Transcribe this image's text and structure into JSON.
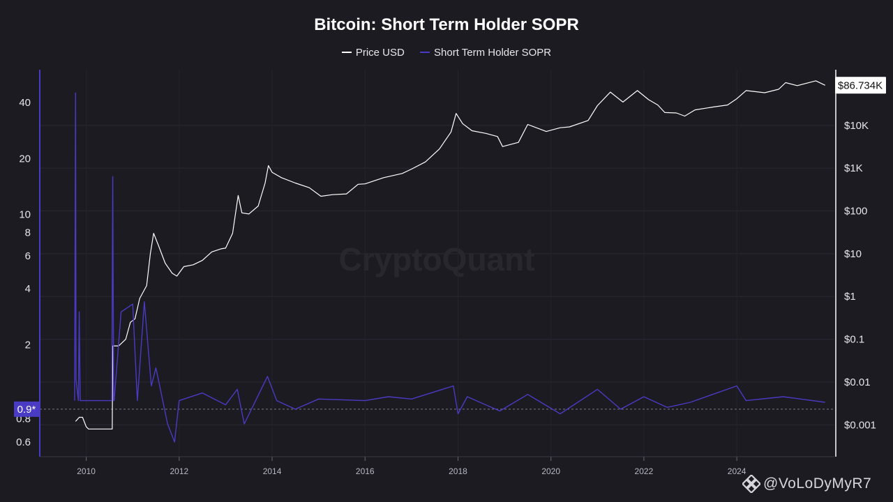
{
  "header": {
    "title": "Bitcoin: Short Term Holder SOPR"
  },
  "legend": [
    {
      "label": "Price USD",
      "color": "#ffffff"
    },
    {
      "label": "Short Term Holder SOPR",
      "color": "#4a3bc4"
    }
  ],
  "watermark": {
    "brand": "CryptoQuant",
    "handle": "@VoLoDyMyR7",
    "logo_icon": "binance-diamond-icon"
  },
  "chart_data": {
    "type": "line",
    "title": "Bitcoin: Short Term Holder SOPR",
    "xlabel": "",
    "ylabel": "",
    "x_ticks": [
      "2010",
      "2012",
      "2014",
      "2016",
      "2018",
      "2020",
      "2022",
      "2024"
    ],
    "xlim": [
      2009.0,
      2026.1
    ],
    "grid": true,
    "legend_position": "top-center",
    "left_axis": {
      "scale": "log",
      "ticks": [
        0.6,
        0.8,
        2,
        4,
        6,
        8,
        10,
        20,
        40
      ],
      "tick_labels": [
        "0.6",
        "0.8",
        "2",
        "4",
        "6",
        "8",
        "10",
        "20",
        "40"
      ],
      "ylim": [
        0.5,
        60
      ],
      "highlight": {
        "label": "0.9*",
        "value": 0.9,
        "color": "#4a3bc4"
      }
    },
    "right_axis": {
      "scale": "log",
      "ticks": [
        0.001,
        0.01,
        0.1,
        1,
        10,
        100,
        1000,
        10000
      ],
      "tick_labels": [
        "$0.001",
        "$0.01",
        "$0.1",
        "$1",
        "$10",
        "$100",
        "$1K",
        "$10K"
      ],
      "ylim": [
        0.00018,
        200000
      ],
      "current_value_label": "$86.734K"
    },
    "series": [
      {
        "name": "Price USD",
        "axis": "right",
        "color": "#ffffff",
        "x": [
          2009.77,
          2009.85,
          2009.92,
          2010.0,
          2010.05,
          2010.1,
          2010.56,
          2010.57,
          2010.7,
          2010.85,
          2010.95,
          2011.05,
          2011.15,
          2011.3,
          2011.38,
          2011.45,
          2011.55,
          2011.7,
          2011.85,
          2011.95,
          2012.1,
          2012.3,
          2012.5,
          2012.7,
          2012.9,
          2013.0,
          2013.15,
          2013.27,
          2013.35,
          2013.5,
          2013.7,
          2013.85,
          2013.92,
          2014.0,
          2014.2,
          2014.5,
          2014.8,
          2015.05,
          2015.3,
          2015.6,
          2015.85,
          2016.0,
          2016.4,
          2016.8,
          2017.0,
          2017.3,
          2017.6,
          2017.85,
          2017.96,
          2018.1,
          2018.3,
          2018.6,
          2018.85,
          2018.96,
          2019.3,
          2019.5,
          2019.9,
          2020.2,
          2020.4,
          2020.8,
          2021.0,
          2021.28,
          2021.55,
          2021.86,
          2022.1,
          2022.3,
          2022.45,
          2022.7,
          2022.88,
          2023.1,
          2023.5,
          2023.8,
          2024.0,
          2024.2,
          2024.6,
          2024.9,
          2025.05,
          2025.3,
          2025.7,
          2025.9
        ],
        "values": [
          0.0012,
          0.0015,
          0.0015,
          0.0009,
          0.0008,
          0.0008,
          0.0008,
          0.07,
          0.07,
          0.1,
          0.25,
          0.3,
          0.9,
          1.8,
          10,
          30,
          16,
          6,
          3.5,
          3,
          5,
          5.5,
          7,
          11,
          13,
          13.5,
          30,
          230,
          90,
          85,
          130,
          450,
          1150,
          800,
          600,
          450,
          350,
          220,
          240,
          250,
          420,
          430,
          600,
          750,
          950,
          1400,
          2800,
          7000,
          19000,
          11000,
          7500,
          6500,
          5500,
          3200,
          4000,
          10500,
          7200,
          8800,
          9200,
          13000,
          29000,
          60000,
          35000,
          65000,
          40000,
          30000,
          20000,
          19500,
          16500,
          23000,
          27000,
          30000,
          42000,
          65000,
          58000,
          70000,
          100000,
          85000,
          110000,
          86734
        ]
      },
      {
        "name": "Short Term Holder SOPR",
        "axis": "left",
        "color": "#4a3bc4",
        "x": [
          2009.75,
          2009.77,
          2009.78,
          2009.83,
          2009.85,
          2009.87,
          2010.55,
          2010.57,
          2010.59,
          2010.6,
          2010.75,
          2011.0,
          2011.1,
          2011.25,
          2011.4,
          2011.5,
          2011.75,
          2011.9,
          2012.0,
          2012.5,
          2013.0,
          2013.25,
          2013.4,
          2013.9,
          2014.1,
          2014.5,
          2015.0,
          2016.0,
          2016.5,
          2017.0,
          2017.9,
          2018.0,
          2018.2,
          2018.9,
          2019.5,
          2020.2,
          2021.0,
          2021.5,
          2022.0,
          2022.5,
          2023.0,
          2024.0,
          2024.2,
          2025.0,
          2025.9
        ],
        "values": [
          1.0,
          45,
          1.3,
          1.0,
          3.0,
          1.0,
          1.0,
          16,
          1.0,
          1.0,
          3.0,
          3.3,
          1.0,
          3.4,
          1.2,
          1.5,
          0.75,
          0.6,
          1.0,
          1.1,
          0.95,
          1.15,
          0.75,
          1.35,
          1.0,
          0.9,
          1.02,
          1.0,
          1.05,
          1.02,
          1.2,
          0.85,
          1.05,
          0.88,
          1.08,
          0.85,
          1.15,
          0.9,
          1.05,
          0.92,
          0.98,
          1.2,
          1.0,
          1.05,
          0.98
        ]
      }
    ]
  }
}
